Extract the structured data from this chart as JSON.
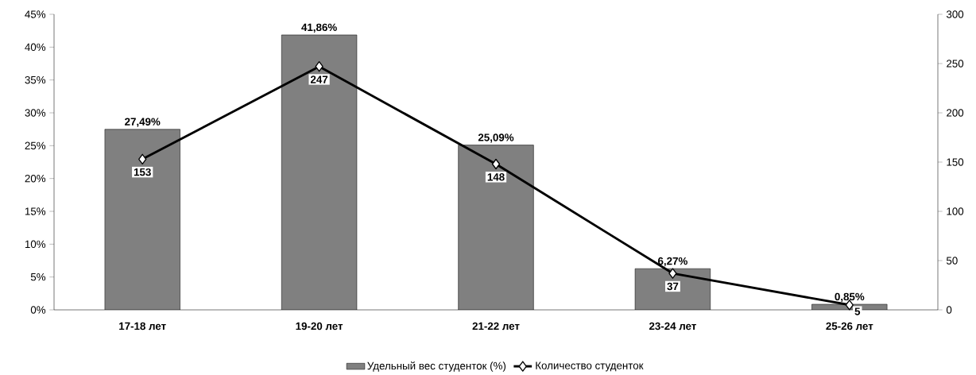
{
  "chart_data": {
    "type": "bar",
    "categories": [
      "17-18 лет",
      "19-20 лет",
      "21-22 лет",
      "23-24 лет",
      "25-26 лет"
    ],
    "series": [
      {
        "name": "Удельный вес студенток (%)",
        "color": "#808080",
        "values": [
          27.49,
          41.86,
          25.09,
          6.27,
          0.85
        ],
        "value_labels": [
          "27,49%",
          "41,86%",
          "25,09%",
          "6,27%",
          "0,85%"
        ]
      },
      {
        "name": "Количество студенток",
        "type": "line",
        "axis": "y2",
        "color": "#000000",
        "marker": "diamond",
        "values": [
          153,
          247,
          148,
          37,
          5
        ],
        "value_labels": [
          "153",
          "247",
          "148",
          "37",
          "5"
        ]
      }
    ],
    "ylim": [
      0,
      45
    ],
    "yticks": [
      {
        "value": 0,
        "label": "0%"
      },
      {
        "value": 5,
        "label": "5%"
      },
      {
        "value": 10,
        "label": "10%"
      },
      {
        "value": 15,
        "label": "15%"
      },
      {
        "value": 20,
        "label": "20%"
      },
      {
        "value": 25,
        "label": "25%"
      },
      {
        "value": 30,
        "label": "30%"
      },
      {
        "value": 35,
        "label": "35%"
      },
      {
        "value": 40,
        "label": "40%"
      },
      {
        "value": 45,
        "label": "45%"
      }
    ],
    "y2lim": [
      0,
      300
    ],
    "y2ticks": [
      0,
      50,
      100,
      150,
      200,
      250,
      300
    ],
    "legend": "bottom"
  }
}
